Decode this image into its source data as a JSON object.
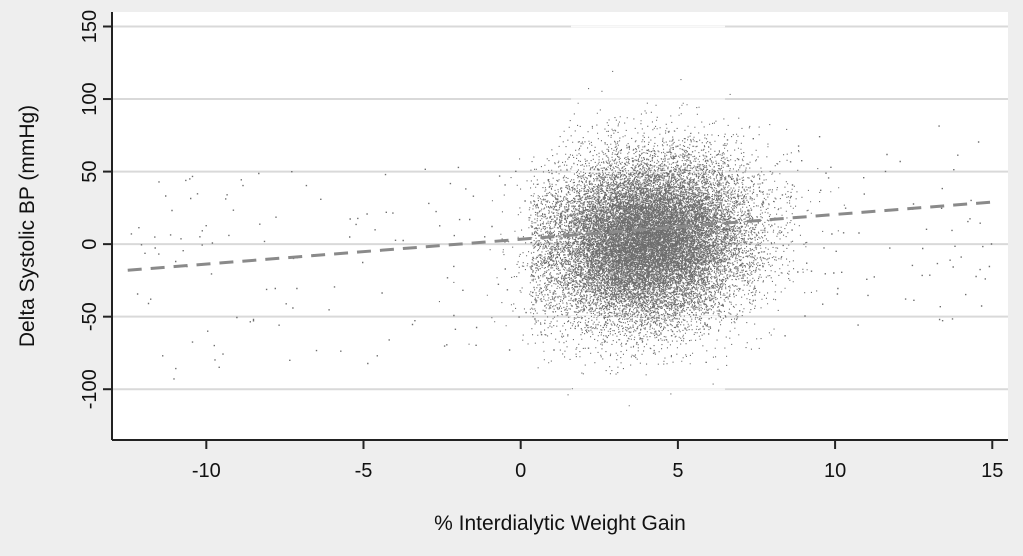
{
  "chart_data": {
    "type": "scatter",
    "title": "",
    "xlabel": "% Interdialytic Weight Gain",
    "ylabel": "Delta Systolic BP (mmHg)",
    "xlim": [
      -13,
      15.5
    ],
    "ylim": [
      -135,
      160
    ],
    "x_ticks": [
      -10,
      -5,
      0,
      5,
      10,
      15
    ],
    "y_ticks": [
      -100,
      -50,
      0,
      50,
      100,
      150
    ],
    "x_tick_labels": [
      "-10",
      "-5",
      "0",
      "5",
      "10",
      "15"
    ],
    "y_tick_labels": [
      "-100",
      "-50",
      "0",
      "50",
      "100",
      "150"
    ],
    "grid": "horizontal",
    "legend": "none",
    "colors": {
      "background": "#eeeeee",
      "plot_area": "#ffffff",
      "gridline": "#d9d9d9",
      "points": "#555555",
      "fit_line": "#8a8a8a",
      "axis": "#222222"
    },
    "scatter_cloud": {
      "description_in_data_units": "dense cloud of patient observations",
      "center": [
        4.0,
        3.0
      ],
      "spread_sd": [
        1.6,
        28.0
      ],
      "n_points_approx": 30000
    },
    "fit_line": {
      "style": "dashed",
      "x": [
        -12.5,
        15
      ],
      "y": [
        -18,
        29
      ]
    }
  }
}
